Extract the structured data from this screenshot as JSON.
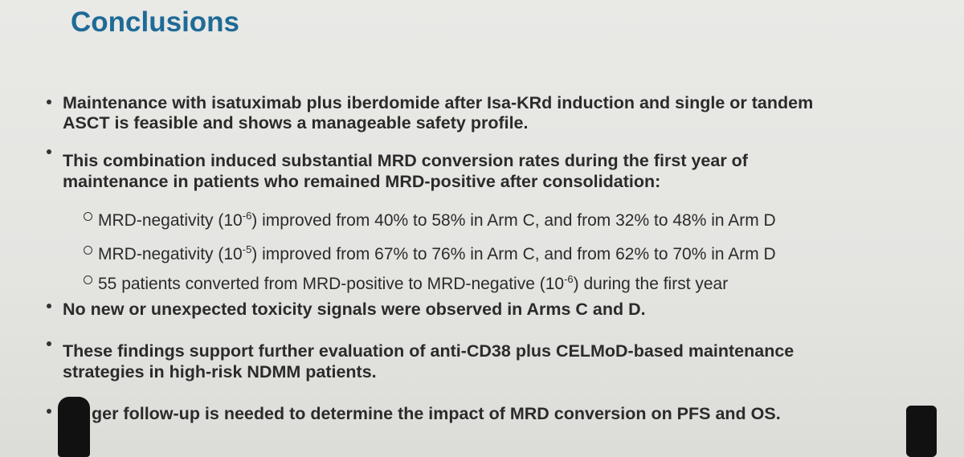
{
  "title": "Conclusions",
  "bullets": [
    {
      "lines": [
        "Maintenance with isatuximab plus iberdomide after Isa-KRd induction and single or tandem",
        "ASCT is feasible and shows a manageable safety profile."
      ]
    },
    {
      "lines": [
        "This combination induced substantial MRD conversion rates during the first year of",
        "maintenance in patients who remained MRD-positive after consolidation:"
      ],
      "sub_items": [
        {
          "before": "MRD-negativity (10",
          "exponent": "-6",
          "after": ") improved from 40% to 58% in Arm C, and from 32% to 48% in Arm D"
        },
        {
          "before": "MRD-negativity (10",
          "exponent": "-5",
          "after": ") improved from 67% to 76% in Arm C, and from 62% to 70% in Arm D"
        },
        {
          "before": "55 patients converted from MRD-positive to MRD-negative (10",
          "exponent": "-6",
          "after": ") during the first year"
        }
      ]
    },
    {
      "lines": [
        "No new or unexpected toxicity signals were observed in Arms C and D."
      ]
    },
    {
      "lines": [
        "These findings support further evaluation of anti-CD38 plus CELMoD-based maintenance",
        "strategies in high-risk NDMM patients."
      ]
    },
    {
      "lines": [
        "ger follow-up is needed to determine the impact of MRD conversion on PFS and OS."
      ]
    }
  ]
}
